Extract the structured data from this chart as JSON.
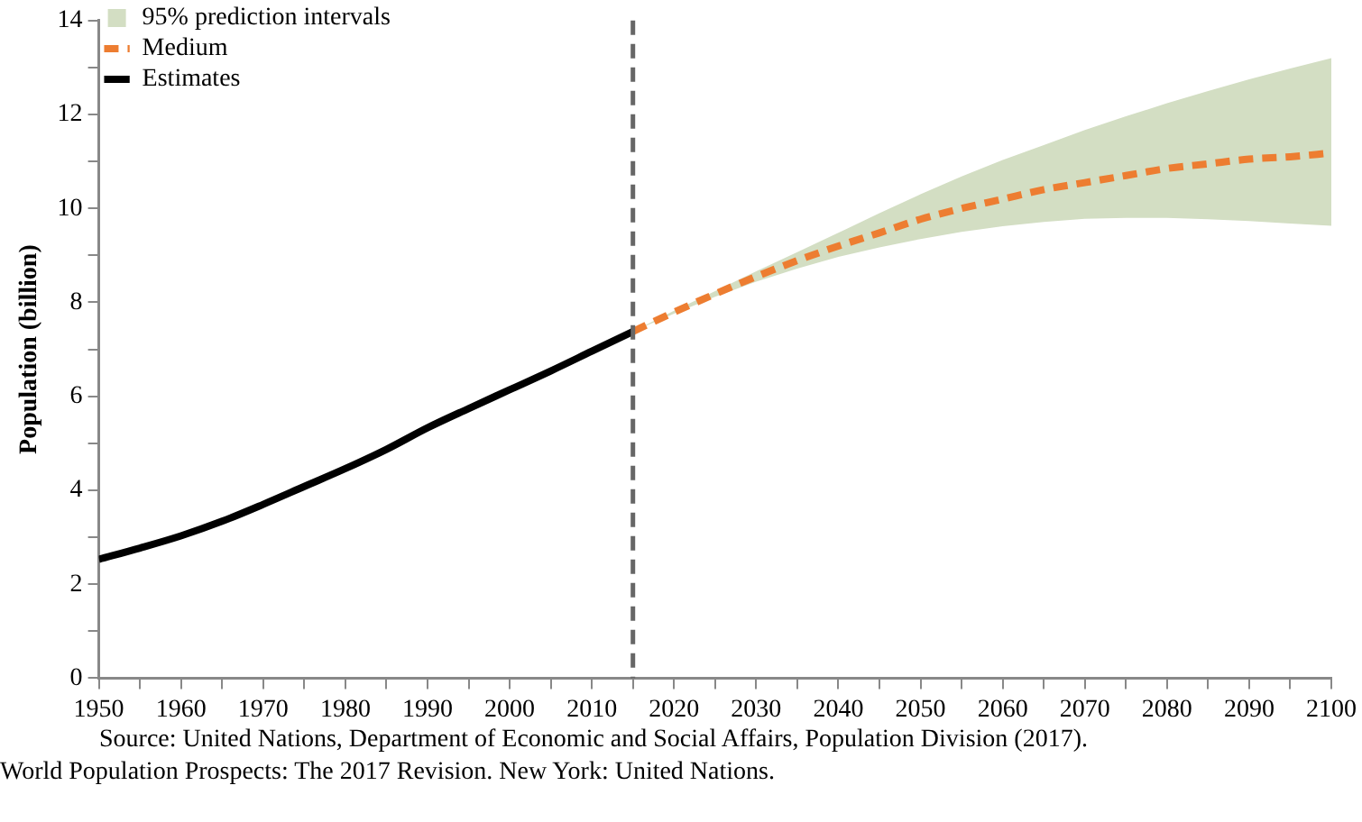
{
  "chart_data": {
    "type": "line",
    "ylabel": "Population (billion)",
    "xlim": [
      1950,
      2100
    ],
    "xticks": [
      1950,
      {
        "value": 1955,
        "label": null
      },
      1960,
      {
        "value": 1965,
        "label": null
      },
      1970,
      {
        "value": 1975,
        "label": null
      },
      1980,
      {
        "value": 1985,
        "label": null
      },
      1990,
      {
        "value": 1995,
        "label": null
      },
      2000,
      {
        "value": 2005,
        "label": null
      },
      2010,
      {
        "value": 2015,
        "label": null
      },
      2020,
      {
        "value": 2025,
        "label": null
      },
      2030,
      {
        "value": 2035,
        "label": null
      },
      2040,
      {
        "value": 2045,
        "label": null
      },
      2050,
      {
        "value": 2055,
        "label": null
      },
      2060,
      {
        "value": 2065,
        "label": null
      },
      2070,
      {
        "value": 2075,
        "label": null
      },
      2080,
      {
        "value": 2085,
        "label": null
      },
      2090,
      {
        "value": 2095,
        "label": null
      },
      2100
    ],
    "ylim": [
      0,
      14
    ],
    "yticks": [
      0,
      {
        "value": 1,
        "label": null
      },
      2,
      {
        "value": 3,
        "label": null
      },
      4,
      {
        "value": 5,
        "label": null
      },
      6,
      {
        "value": 7,
        "label": null
      },
      8,
      {
        "value": 9,
        "label": null
      },
      10,
      {
        "value": 11,
        "label": null
      },
      12,
      {
        "value": 13,
        "label": null
      },
      14
    ],
    "grid": false,
    "legend": "top left",
    "marker": "none",
    "series": [
      {
        "name": "95% prediction intervals",
        "type": "area",
        "color": "#d3dec3"
      },
      {
        "name": "Medium",
        "type": "line",
        "line_style": "dashed",
        "color": "#ed7d31",
        "x": [
          2015,
          2020,
          2025,
          2030,
          2035,
          2040,
          2045,
          2050,
          2055,
          2060,
          2065,
          2070,
          2075,
          2080,
          2085,
          2090,
          2095,
          2100
        ],
        "values": [
          7.38,
          7.79,
          8.18,
          8.55,
          8.89,
          9.2,
          9.48,
          9.77,
          10.0,
          10.2,
          10.4,
          10.55,
          10.7,
          10.85,
          10.95,
          11.05,
          11.1,
          11.18
        ],
        "lower": [
          7.38,
          7.76,
          8.12,
          8.44,
          8.72,
          8.97,
          9.17,
          9.35,
          9.5,
          9.62,
          9.71,
          9.78,
          9.8,
          9.8,
          9.77,
          9.73,
          9.68,
          9.63
        ],
        "upper": [
          7.38,
          7.82,
          8.24,
          8.66,
          9.07,
          9.48,
          9.9,
          10.3,
          10.68,
          11.03,
          11.35,
          11.67,
          11.96,
          12.24,
          12.5,
          12.75,
          12.98,
          13.2
        ]
      },
      {
        "name": "Estimates",
        "type": "line",
        "line_style": "solid",
        "color": "#000000",
        "x": [
          1950,
          1955,
          1960,
          1965,
          1970,
          1975,
          1980,
          1985,
          1990,
          1995,
          2000,
          2005,
          2010,
          2015
        ],
        "values": [
          2.53,
          2.77,
          3.03,
          3.34,
          3.7,
          4.08,
          4.46,
          4.87,
          5.33,
          5.74,
          6.14,
          6.54,
          6.96,
          7.38
        ]
      }
    ],
    "ref_lines": [
      {
        "axis": "x",
        "value": 2015,
        "color": "#666666",
        "line_style": "dashed"
      }
    ],
    "annotations": [
      "Source: United Nations, Department of Economic and Social Affairs, Population Division (2017).",
      "World Population Prospects: The 2017 Revision. New York: United Nations."
    ]
  }
}
